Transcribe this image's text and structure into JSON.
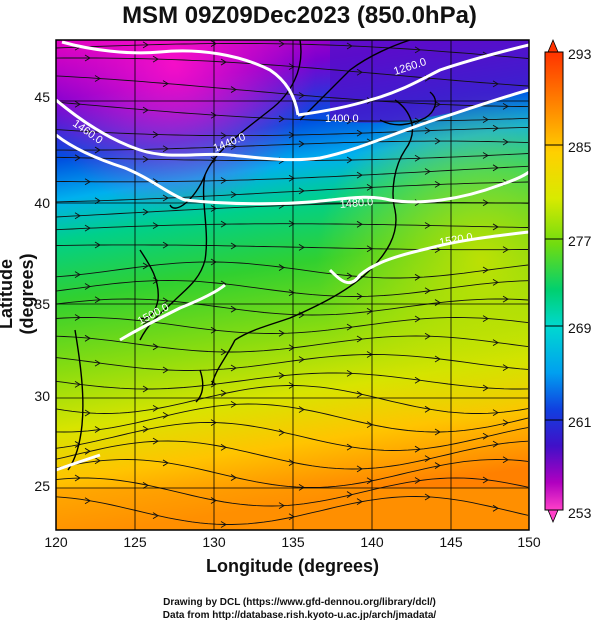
{
  "title": "MSM 09Z09Dec2023 (850.0hPa)",
  "axes": {
    "xlabel": "Longitude (degrees)",
    "ylabel": "Latitude  (degrees)",
    "x_ticks": [
      "120",
      "125",
      "130",
      "135",
      "140",
      "145",
      "150"
    ],
    "y_ticks": [
      "25",
      "30",
      "35",
      "40",
      "45"
    ],
    "xlim": [
      120,
      150
    ],
    "ylim": [
      22.4,
      47.6
    ]
  },
  "colorbar": {
    "ticks": [
      "293",
      "285",
      "277",
      "269",
      "261",
      "253"
    ],
    "range": [
      253,
      293
    ],
    "colors": [
      "#ff3300",
      "#ff7a00",
      "#ffc000",
      "#ffee00",
      "#bfe800",
      "#4bd800",
      "#00d06a",
      "#00d4c8",
      "#00a0f0",
      "#0050e0",
      "#2020c8",
      "#6000c8",
      "#c000c0",
      "#ff00c0"
    ]
  },
  "contours": {
    "labels": [
      "1260.0",
      "1400.0",
      "1440.0",
      "1460.0",
      "1480.0",
      "1520.0",
      "1500.0",
      "1460.0"
    ]
  },
  "credits": {
    "line1": "Drawing by DCL (https://www.gfd-dennou.org/library/dcl/)",
    "line2": "Data from http://database.rish.kyoto-u.ac.jp/arch/jmadata/"
  },
  "colors": {
    "frame": "#000000",
    "contour": "#ffffff",
    "streamline": "#111111",
    "coast": "#000000"
  }
}
